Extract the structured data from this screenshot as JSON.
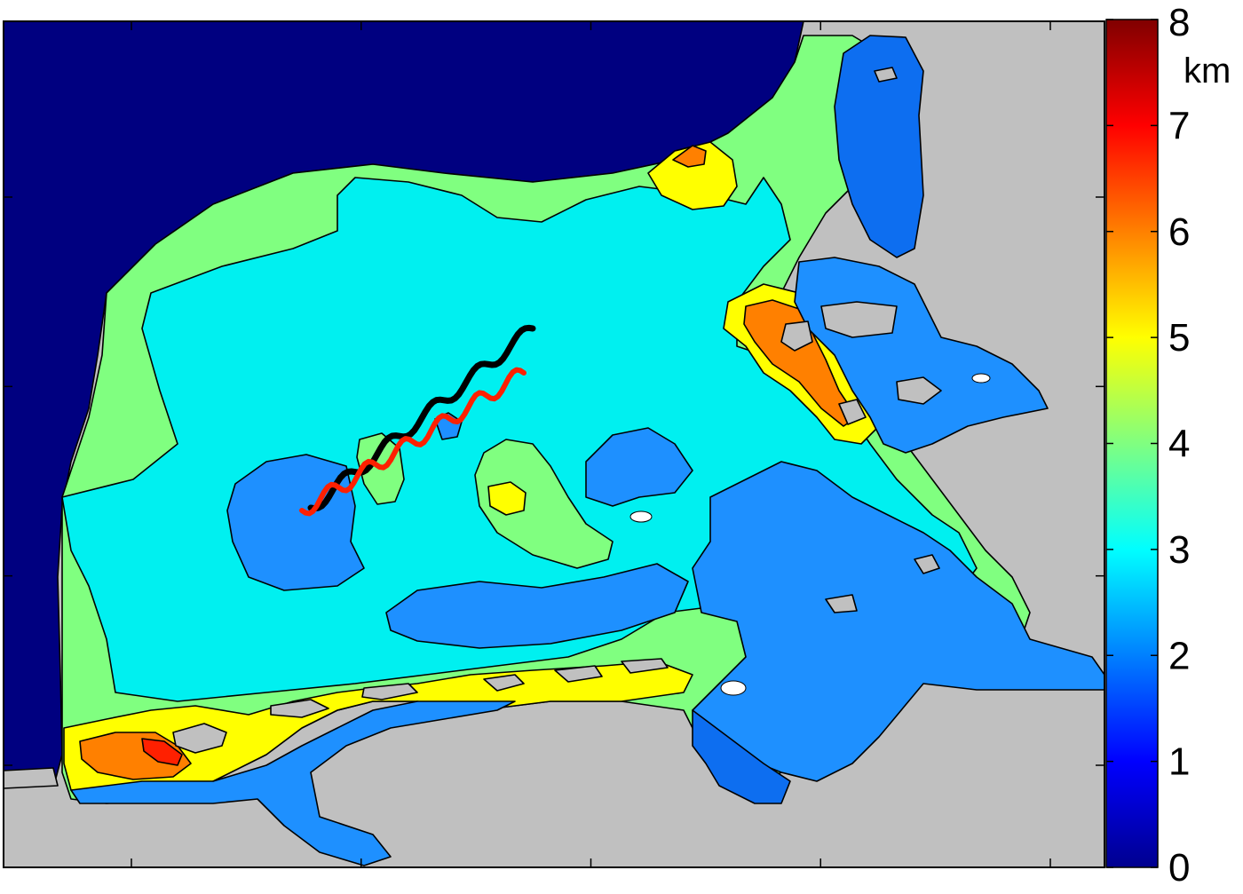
{
  "chart_data": {
    "type": "heatmap",
    "title": "",
    "xlabel": "",
    "ylabel": "",
    "grid": false,
    "colorbar": {
      "unit": "km",
      "min": 0,
      "max": 8,
      "ticks": [
        0,
        1,
        2,
        3,
        4,
        5,
        6,
        7,
        8
      ],
      "tick_labels": [
        "0",
        "1",
        "2",
        "3",
        "4",
        "5",
        "6",
        "7",
        "8"
      ],
      "colormap": "jet",
      "stops": [
        "#00008f",
        "#0000ff",
        "#0080ff",
        "#00ffff",
        "#80ff80",
        "#ffff00",
        "#ff8000",
        "#ff0000",
        "#800000"
      ]
    },
    "field_levels": [
      {
        "level": 0.5,
        "color": "#000080"
      },
      {
        "level": 2.0,
        "color": "#0d6ef0"
      },
      {
        "level": 2.3,
        "color": "#1e90ff"
      },
      {
        "level": 3.0,
        "color": "#00f0f0"
      },
      {
        "level": 4.0,
        "color": "#80ff80"
      },
      {
        "level": 5.0,
        "color": "#ffff00"
      },
      {
        "level": 6.0,
        "color": "#ff8000"
      },
      {
        "level": 7.0,
        "color": "#ff2000"
      }
    ],
    "land_color": "#c0c0c0",
    "tracks": [
      {
        "color": "#000000"
      },
      {
        "color": "#ff2000"
      }
    ],
    "x_tick_count": 5,
    "y_tick_count": 4
  }
}
